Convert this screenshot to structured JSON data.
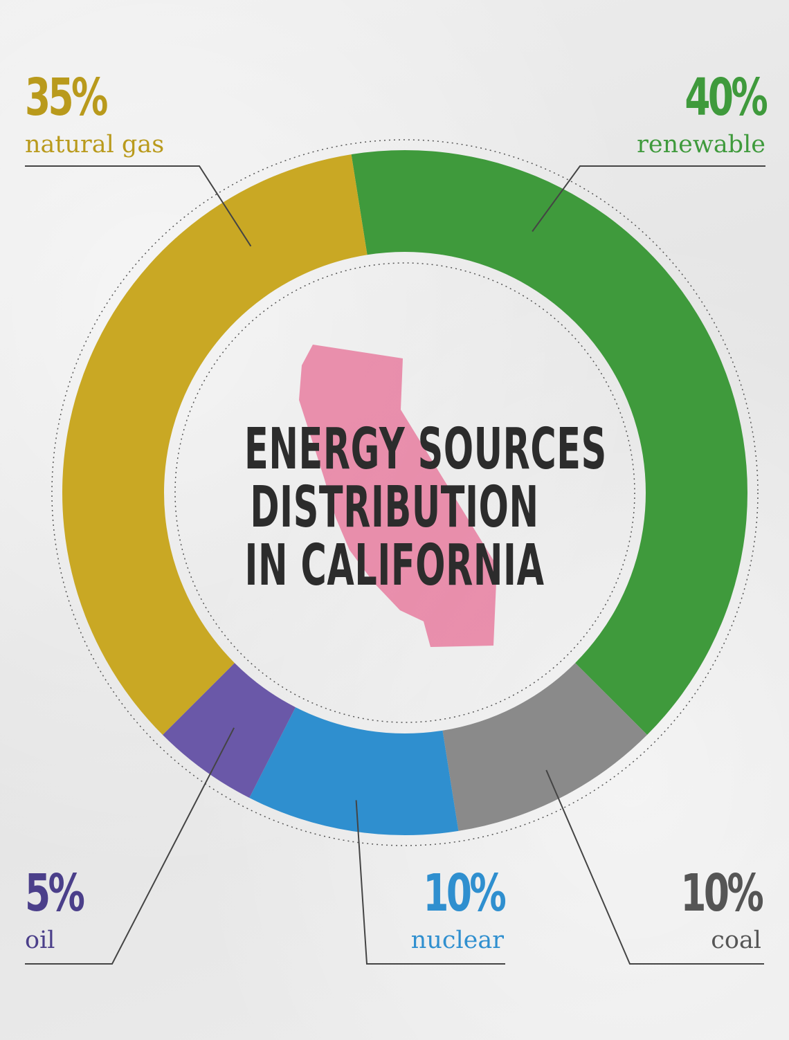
{
  "title_lines": [
    "ENERGY SOURCES",
    "DISTRIBUTION",
    "IN CALIFORNIA"
  ],
  "chart_data": {
    "type": "pie",
    "style": "donut",
    "categories": [
      "renewable",
      "coal",
      "nuclear",
      "oil",
      "natural gas"
    ],
    "values": [
      40,
      10,
      10,
      5,
      35
    ],
    "value_labels": [
      "40%",
      "10%",
      "10%",
      "5%",
      "35%"
    ],
    "colors": [
      "#3f9a3c",
      "#8a8a8a",
      "#2f8fcf",
      "#6a58a8",
      "#c9a824"
    ],
    "label_colors": [
      "#3f9a3c",
      "#555555",
      "#2f8fcf",
      "#4b3f8a",
      "#b99a1c"
    ]
  },
  "map_icon": "california-state-shape",
  "map_color": "#e889a8"
}
